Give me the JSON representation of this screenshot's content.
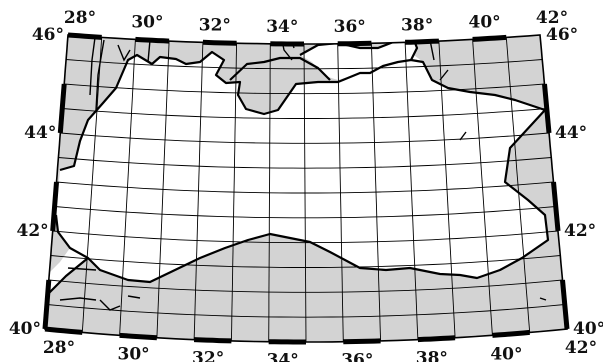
{
  "map": {
    "projection": "conic",
    "lon_range": [
      28,
      42
    ],
    "lat_range": [
      40,
      46
    ],
    "graticule_spacing_deg": 1,
    "land_color": "#d3d3d3",
    "water_color": "#ffffff",
    "coastline_color": "#000000",
    "labels": {
      "top": [
        "28°",
        "30°",
        "32°",
        "34°",
        "36°",
        "38°",
        "40°",
        "42°"
      ],
      "bottom": [
        "28°",
        "30°",
        "32°",
        "34°",
        "36°",
        "38°",
        "40°",
        "42°"
      ],
      "left": [
        "40°",
        "42°",
        "44°",
        "46°"
      ],
      "right": [
        "40°",
        "42°",
        "44°",
        "46°"
      ]
    }
  }
}
